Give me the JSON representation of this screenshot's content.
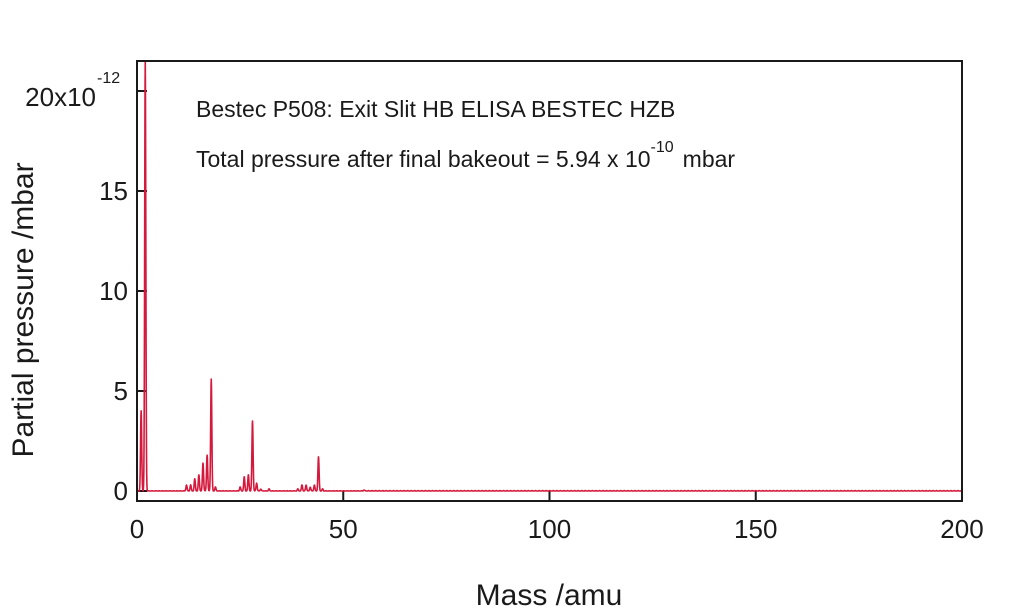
{
  "chart_data": {
    "type": "line",
    "title": "",
    "xlabel": "Mass /amu",
    "ylabel": "Partial pressure /mbar",
    "xlim": [
      0,
      200
    ],
    "ylim": [
      0,
      21.5
    ],
    "x_ticks": [
      0,
      50,
      100,
      150,
      200
    ],
    "x_tick_labels": [
      "0",
      "50",
      "100",
      "150",
      "200"
    ],
    "y_ticks": [
      0,
      5,
      10,
      15
    ],
    "y_tick_labels": [
      "0",
      "5",
      "10",
      "15"
    ],
    "y_scale_label": {
      "base": "20x10",
      "exponent": "-12"
    },
    "annotations": {
      "line1": "Bestec P508: Exit Slit HB ELISA BESTEC HZB",
      "line2_prefix": "Total pressure after final bakeout = 5.94 x 10",
      "line2_exponent": "-10",
      "line2_suffix": "mbar"
    },
    "grid": false,
    "series": [
      {
        "color": "#d4193c",
        "peaks": [
          {
            "x": 1,
            "y": 4.0
          },
          {
            "x": 2,
            "y": 21.5
          },
          {
            "x": 12,
            "y": 0.3
          },
          {
            "x": 13,
            "y": 0.3
          },
          {
            "x": 14,
            "y": 0.6
          },
          {
            "x": 15,
            "y": 0.8
          },
          {
            "x": 16,
            "y": 1.4
          },
          {
            "x": 17,
            "y": 1.8
          },
          {
            "x": 18,
            "y": 5.6
          },
          {
            "x": 19,
            "y": 0.2
          },
          {
            "x": 25,
            "y": 0.2
          },
          {
            "x": 26,
            "y": 0.7
          },
          {
            "x": 27,
            "y": 0.8
          },
          {
            "x": 28,
            "y": 3.5
          },
          {
            "x": 29,
            "y": 0.4
          },
          {
            "x": 30,
            "y": 0.1
          },
          {
            "x": 32,
            "y": 0.1
          },
          {
            "x": 39,
            "y": 0.1
          },
          {
            "x": 40,
            "y": 0.3
          },
          {
            "x": 41,
            "y": 0.3
          },
          {
            "x": 42,
            "y": 0.2
          },
          {
            "x": 43,
            "y": 0.3
          },
          {
            "x": 44,
            "y": 1.7
          },
          {
            "x": 45,
            "y": 0.1
          },
          {
            "x": 55,
            "y": 0.05
          }
        ]
      }
    ]
  }
}
